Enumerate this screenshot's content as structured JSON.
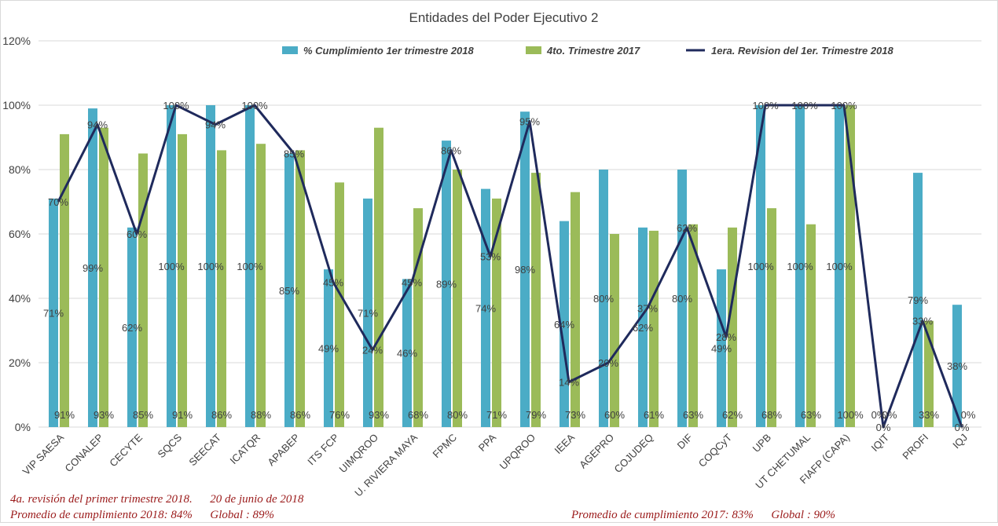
{
  "chart_data": {
    "type": "bar",
    "title": "Entidades del Poder Ejecutivo 2",
    "categories": [
      "VIP SAESA",
      "CONALEP",
      "CECYTE",
      "SQCS",
      "SEECAT",
      "ICATQR",
      "APABEP",
      "ITS FCP",
      "UIMQROO",
      "U. RIVIERA MAYA",
      "FPMC",
      "PPA",
      "UPQROO",
      "IEEA",
      "AGEPRO",
      "COJUDEQ",
      "DIF",
      "COQCyT",
      "UPB",
      "UT CHETUMAL",
      "FIAFP (CAPA)",
      "IQIT",
      "PROFI",
      "IQJ"
    ],
    "ylim": [
      0,
      120
    ],
    "yticks": [
      "0%",
      "20%",
      "40%",
      "60%",
      "80%",
      "100%",
      "120%"
    ],
    "grid": true,
    "legend_position": "top",
    "series": [
      {
        "name": "% Cumplimiento 1er trimestre 2018",
        "kind": "bar",
        "color": "#4bacc6",
        "values": [
          71,
          99,
          62,
          100,
          100,
          100,
          85,
          49,
          71,
          46,
          89,
          74,
          98,
          64,
          80,
          62,
          80,
          49,
          100,
          100,
          100,
          0,
          79,
          38
        ],
        "labels": [
          "71%",
          "99%",
          "62%",
          "100%",
          "100%",
          "100%",
          "85%",
          "49%",
          "71%",
          "46%",
          "89%",
          "74%",
          "98%",
          "64%",
          "80%",
          "62%",
          "80%",
          "49%",
          "100%",
          "100%",
          "100%",
          "0%",
          "79%",
          "38%"
        ]
      },
      {
        "name": "4to. Trimestre 2017",
        "kind": "bar",
        "color": "#9bbb59",
        "values": [
          91,
          93,
          85,
          91,
          86,
          88,
          86,
          76,
          93,
          68,
          80,
          71,
          79,
          73,
          60,
          61,
          63,
          62,
          68,
          63,
          100,
          0,
          33,
          0
        ],
        "labels": [
          "91%",
          "93%",
          "85%",
          "91%",
          "86%",
          "88%",
          "86%",
          "76%",
          "93%",
          "68%",
          "80%",
          "71%",
          "79%",
          "73%",
          "60%",
          "61%",
          "63%",
          "62%",
          "68%",
          "63%",
          "100%",
          "0%",
          "33%",
          "0%"
        ]
      },
      {
        "name": "1era. Revision del 1er. Trimestre 2018",
        "kind": "line",
        "color": "#1f2a5c",
        "values": [
          70,
          94,
          60,
          100,
          94,
          100,
          85,
          45,
          24,
          45,
          86,
          53,
          95,
          14,
          20,
          37,
          62,
          28,
          100,
          100,
          100,
          0,
          33,
          0
        ],
        "labels": [
          "70%",
          "94%",
          "60%",
          "100%",
          "94%",
          "100%",
          "85%",
          "45%",
          "24%",
          "45%",
          "86%",
          "53%",
          "95%",
          "14%",
          "20%",
          "37%",
          "62%",
          "28%",
          "100%",
          "100%",
          "100%",
          "0%",
          "33%",
          "0%"
        ]
      }
    ]
  },
  "notes": {
    "line1": "4a. revisión del primer trimestre 2018.      20 de junio de 2018",
    "line2": "Promedio de cumplimiento 2018: 84%      Global : 89%",
    "line3": "Promedio de cumplimiento 2017: 83%      Global : 90%"
  }
}
